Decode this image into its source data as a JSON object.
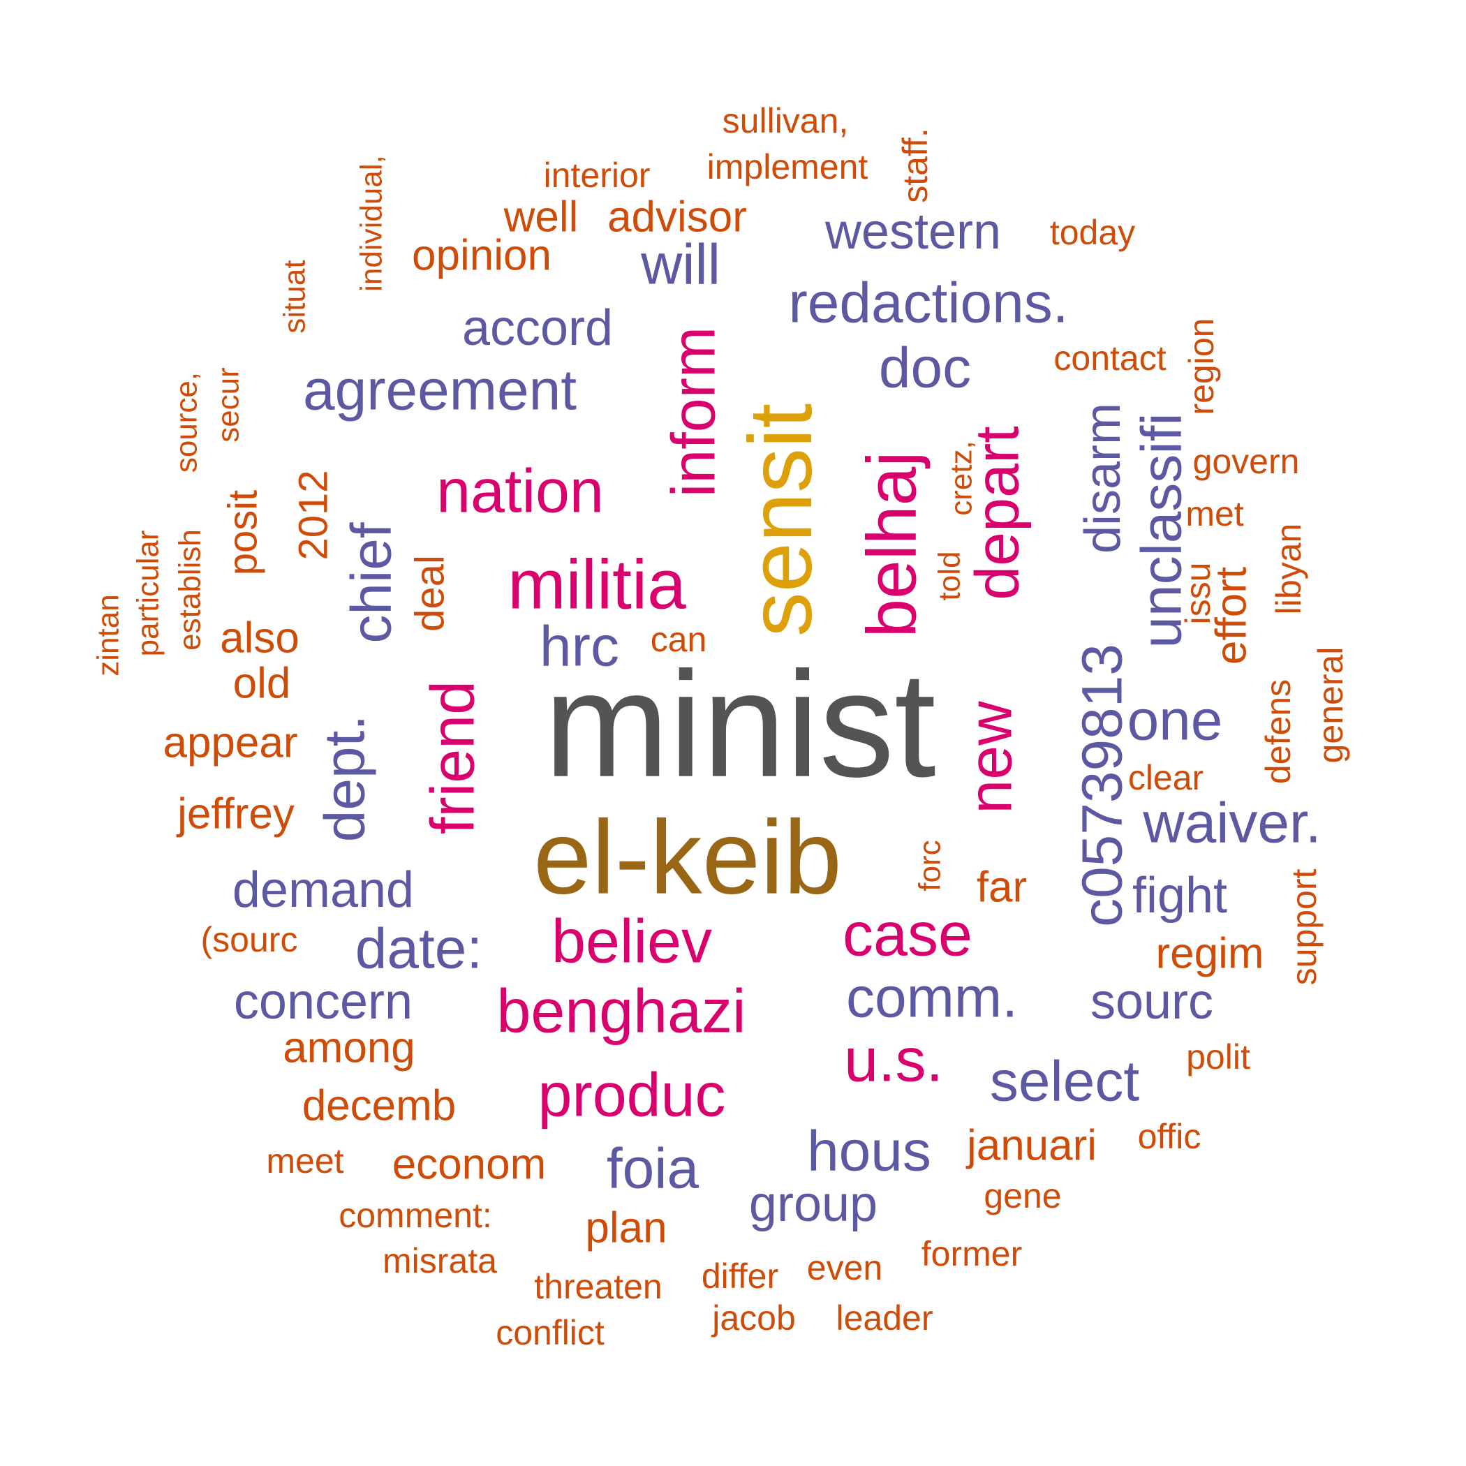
{
  "palette": {
    "dark": "#545454",
    "brown": "#996615",
    "gold": "#DEA009",
    "magenta": "#D9006E",
    "purple": "#5D58A2",
    "orange": "#CF4C08"
  },
  "words": [
    {
      "text": "minist",
      "color": "dark"
    },
    {
      "text": "el-keib",
      "color": "brown"
    },
    {
      "text": "sensit",
      "color": "gold"
    },
    {
      "text": "militia",
      "color": "magenta"
    },
    {
      "text": "belhaj",
      "color": "magenta"
    },
    {
      "text": "inform",
      "color": "magenta"
    },
    {
      "text": "nation",
      "color": "magenta"
    },
    {
      "text": "depart",
      "color": "magenta"
    },
    {
      "text": "new",
      "color": "magenta"
    },
    {
      "text": "friend",
      "color": "magenta"
    },
    {
      "text": "benghazi",
      "color": "magenta"
    },
    {
      "text": "produc",
      "color": "magenta"
    },
    {
      "text": "believ",
      "color": "magenta"
    },
    {
      "text": "case",
      "color": "magenta"
    },
    {
      "text": "u.s.",
      "color": "magenta"
    },
    {
      "text": "c05739813",
      "color": "purple"
    },
    {
      "text": "unclassifi",
      "color": "purple"
    },
    {
      "text": "agreement",
      "color": "purple"
    },
    {
      "text": "redactions.",
      "color": "purple"
    },
    {
      "text": "waiver.",
      "color": "purple"
    },
    {
      "text": "comm.",
      "color": "purple"
    },
    {
      "text": "date:",
      "color": "purple"
    },
    {
      "text": "chief",
      "color": "purple"
    },
    {
      "text": "dept.",
      "color": "purple"
    },
    {
      "text": "hous",
      "color": "purple"
    },
    {
      "text": "select",
      "color": "purple"
    },
    {
      "text": "foia",
      "color": "purple"
    },
    {
      "text": "one",
      "color": "purple"
    },
    {
      "text": "doc",
      "color": "purple"
    },
    {
      "text": "will",
      "color": "purple"
    },
    {
      "text": "hrc",
      "color": "purple"
    },
    {
      "text": "western",
      "color": "purple"
    },
    {
      "text": "accord",
      "color": "purple"
    },
    {
      "text": "group",
      "color": "purple"
    },
    {
      "text": "demand",
      "color": "purple"
    },
    {
      "text": "concern",
      "color": "purple"
    },
    {
      "text": "disarm",
      "color": "purple"
    },
    {
      "text": "fight",
      "color": "purple"
    },
    {
      "text": "sourc",
      "color": "purple"
    },
    {
      "text": "well",
      "color": "orange"
    },
    {
      "text": "advisor",
      "color": "orange"
    },
    {
      "text": "opinion",
      "color": "orange"
    },
    {
      "text": "appear",
      "color": "orange"
    },
    {
      "text": "jeffrey",
      "color": "orange"
    },
    {
      "text": "also",
      "color": "orange"
    },
    {
      "text": "old",
      "color": "orange"
    },
    {
      "text": "among",
      "color": "orange"
    },
    {
      "text": "decemb",
      "color": "orange"
    },
    {
      "text": "econom",
      "color": "orange"
    },
    {
      "text": "januari",
      "color": "orange"
    },
    {
      "text": "plan",
      "color": "orange"
    },
    {
      "text": "regim",
      "color": "orange"
    },
    {
      "text": "far",
      "color": "orange"
    },
    {
      "text": "effort",
      "color": "orange"
    },
    {
      "text": "deal",
      "color": "orange"
    },
    {
      "text": "2012",
      "color": "orange"
    },
    {
      "text": "posit",
      "color": "orange"
    },
    {
      "text": "sullivan,",
      "color": "orange"
    },
    {
      "text": "implement",
      "color": "orange"
    },
    {
      "text": "interior",
      "color": "orange"
    },
    {
      "text": "staff.",
      "color": "orange"
    },
    {
      "text": "today",
      "color": "orange"
    },
    {
      "text": "contact",
      "color": "orange"
    },
    {
      "text": "region",
      "color": "orange"
    },
    {
      "text": "govern",
      "color": "orange"
    },
    {
      "text": "met",
      "color": "orange"
    },
    {
      "text": "libyan",
      "color": "orange"
    },
    {
      "text": "issu",
      "color": "orange"
    },
    {
      "text": "general",
      "color": "orange"
    },
    {
      "text": "defens",
      "color": "orange"
    },
    {
      "text": "clear",
      "color": "orange"
    },
    {
      "text": "support",
      "color": "orange"
    },
    {
      "text": "polit",
      "color": "orange"
    },
    {
      "text": "offic",
      "color": "orange"
    },
    {
      "text": "gene",
      "color": "orange"
    },
    {
      "text": "former",
      "color": "orange"
    },
    {
      "text": "even",
      "color": "orange"
    },
    {
      "text": "leader",
      "color": "orange"
    },
    {
      "text": "jacob",
      "color": "orange"
    },
    {
      "text": "differ",
      "color": "orange"
    },
    {
      "text": "threaten",
      "color": "orange"
    },
    {
      "text": "conflict",
      "color": "orange"
    },
    {
      "text": "misrata",
      "color": "orange"
    },
    {
      "text": "comment:",
      "color": "orange"
    },
    {
      "text": "meet",
      "color": "orange"
    },
    {
      "text": "(sourc",
      "color": "orange"
    },
    {
      "text": "can",
      "color": "orange"
    },
    {
      "text": "told",
      "color": "orange"
    },
    {
      "text": "cretz,",
      "color": "orange"
    },
    {
      "text": "forc",
      "color": "orange"
    },
    {
      "text": "individual,",
      "color": "orange"
    },
    {
      "text": "situat",
      "color": "orange"
    },
    {
      "text": "secur",
      "color": "orange"
    },
    {
      "text": "source,",
      "color": "orange"
    },
    {
      "text": "establish",
      "color": "orange"
    },
    {
      "text": "particular",
      "color": "orange"
    },
    {
      "text": "zintan",
      "color": "orange"
    }
  ]
}
